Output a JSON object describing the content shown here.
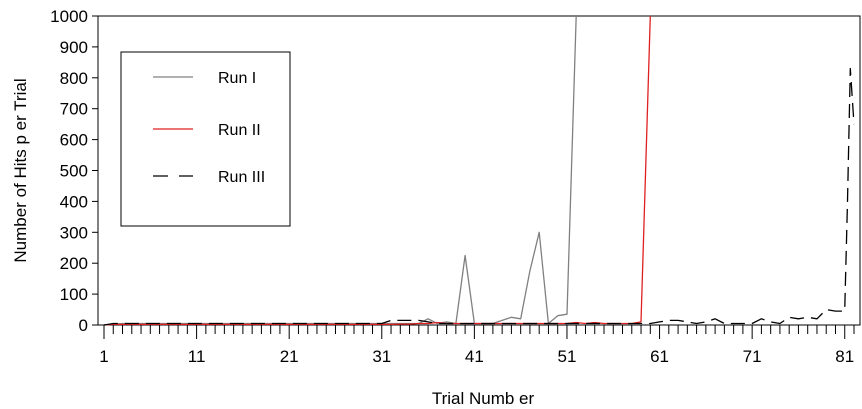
{
  "chart_data": {
    "type": "line",
    "title": "",
    "xlabel": "Trial Numb er",
    "ylabel": "Number of Hits p er Trial",
    "xlim": [
      1,
      82
    ],
    "ylim": [
      0,
      1000
    ],
    "x_ticks": [
      1,
      11,
      21,
      31,
      41,
      51,
      61,
      71,
      81
    ],
    "x_tick_labels": [
      "1",
      "11",
      "21",
      "31",
      "41",
      "51",
      "61",
      "71",
      "81"
    ],
    "y_ticks": [
      0,
      100,
      200,
      300,
      400,
      500,
      600,
      700,
      800,
      900,
      1000
    ],
    "y_tick_labels": [
      "0",
      "100",
      "200",
      "300",
      "400",
      "500",
      "600",
      "700",
      "800",
      "900",
      "1000"
    ],
    "grid": false,
    "legend_placement": "upper-left",
    "series": [
      {
        "name": "Run I",
        "color": "#808080",
        "style": "solid",
        "x": [
          1,
          2,
          3,
          4,
          5,
          6,
          7,
          8,
          9,
          10,
          11,
          12,
          13,
          14,
          15,
          16,
          17,
          18,
          19,
          20,
          21,
          22,
          23,
          24,
          25,
          26,
          27,
          28,
          29,
          30,
          31,
          32,
          33,
          34,
          35,
          36,
          37,
          38,
          39,
          40,
          41,
          42,
          43,
          44,
          45,
          46,
          47,
          48,
          49,
          50,
          51,
          52
        ],
        "y": [
          0,
          3,
          5,
          5,
          5,
          5,
          5,
          5,
          5,
          5,
          5,
          5,
          5,
          5,
          5,
          5,
          5,
          5,
          5,
          5,
          5,
          5,
          5,
          5,
          5,
          5,
          5,
          5,
          5,
          5,
          5,
          5,
          5,
          5,
          5,
          20,
          5,
          10,
          5,
          225,
          5,
          5,
          5,
          15,
          25,
          20,
          175,
          300,
          5,
          30,
          35,
          1000
        ]
      },
      {
        "name": "Run II",
        "color": "#e02020",
        "style": "solid",
        "x": [
          1,
          2,
          3,
          4,
          5,
          6,
          7,
          8,
          9,
          10,
          11,
          12,
          13,
          14,
          15,
          16,
          17,
          18,
          19,
          20,
          21,
          22,
          23,
          24,
          25,
          26,
          27,
          28,
          29,
          30,
          31,
          32,
          33,
          34,
          35,
          36,
          37,
          38,
          39,
          40,
          41,
          42,
          43,
          44,
          45,
          46,
          47,
          48,
          49,
          50,
          51,
          52,
          53,
          54,
          55,
          56,
          57,
          58,
          59,
          60
        ],
        "y": [
          0,
          2,
          2,
          2,
          2,
          2,
          2,
          2,
          2,
          2,
          2,
          2,
          2,
          2,
          2,
          2,
          2,
          2,
          2,
          2,
          2,
          2,
          2,
          2,
          2,
          2,
          2,
          2,
          2,
          2,
          2,
          2,
          3,
          3,
          5,
          5,
          8,
          5,
          5,
          5,
          5,
          5,
          5,
          5,
          5,
          5,
          5,
          5,
          5,
          5,
          5,
          8,
          5,
          8,
          5,
          5,
          5,
          5,
          10,
          1000
        ]
      },
      {
        "name": "Run III",
        "color": "#000000",
        "style": "dashed",
        "x": [
          1,
          2,
          3,
          4,
          5,
          6,
          7,
          8,
          9,
          10,
          11,
          12,
          13,
          14,
          15,
          16,
          17,
          18,
          19,
          20,
          21,
          22,
          23,
          24,
          25,
          26,
          27,
          28,
          29,
          30,
          31,
          32,
          33,
          34,
          35,
          36,
          37,
          38,
          39,
          40,
          41,
          42,
          43,
          44,
          45,
          46,
          47,
          48,
          49,
          50,
          51,
          52,
          53,
          54,
          55,
          56,
          57,
          58,
          59,
          60,
          61,
          62,
          63,
          64,
          65,
          66,
          67,
          68,
          69,
          70,
          71,
          72,
          73,
          74,
          75,
          76,
          77,
          78,
          79,
          80,
          81,
          81.3,
          81.6,
          82
        ],
        "y": [
          0,
          5,
          5,
          5,
          5,
          5,
          5,
          5,
          5,
          5,
          5,
          5,
          5,
          5,
          5,
          5,
          5,
          5,
          5,
          5,
          5,
          5,
          5,
          5,
          5,
          5,
          5,
          5,
          5,
          5,
          5,
          15,
          15,
          15,
          15,
          10,
          5,
          5,
          5,
          5,
          5,
          5,
          5,
          5,
          5,
          5,
          5,
          5,
          5,
          5,
          5,
          5,
          5,
          5,
          5,
          5,
          5,
          5,
          5,
          5,
          10,
          15,
          15,
          10,
          5,
          10,
          20,
          5,
          5,
          5,
          5,
          20,
          10,
          5,
          25,
          20,
          25,
          20,
          50,
          45,
          45,
          400,
          830,
          650
        ]
      }
    ]
  }
}
